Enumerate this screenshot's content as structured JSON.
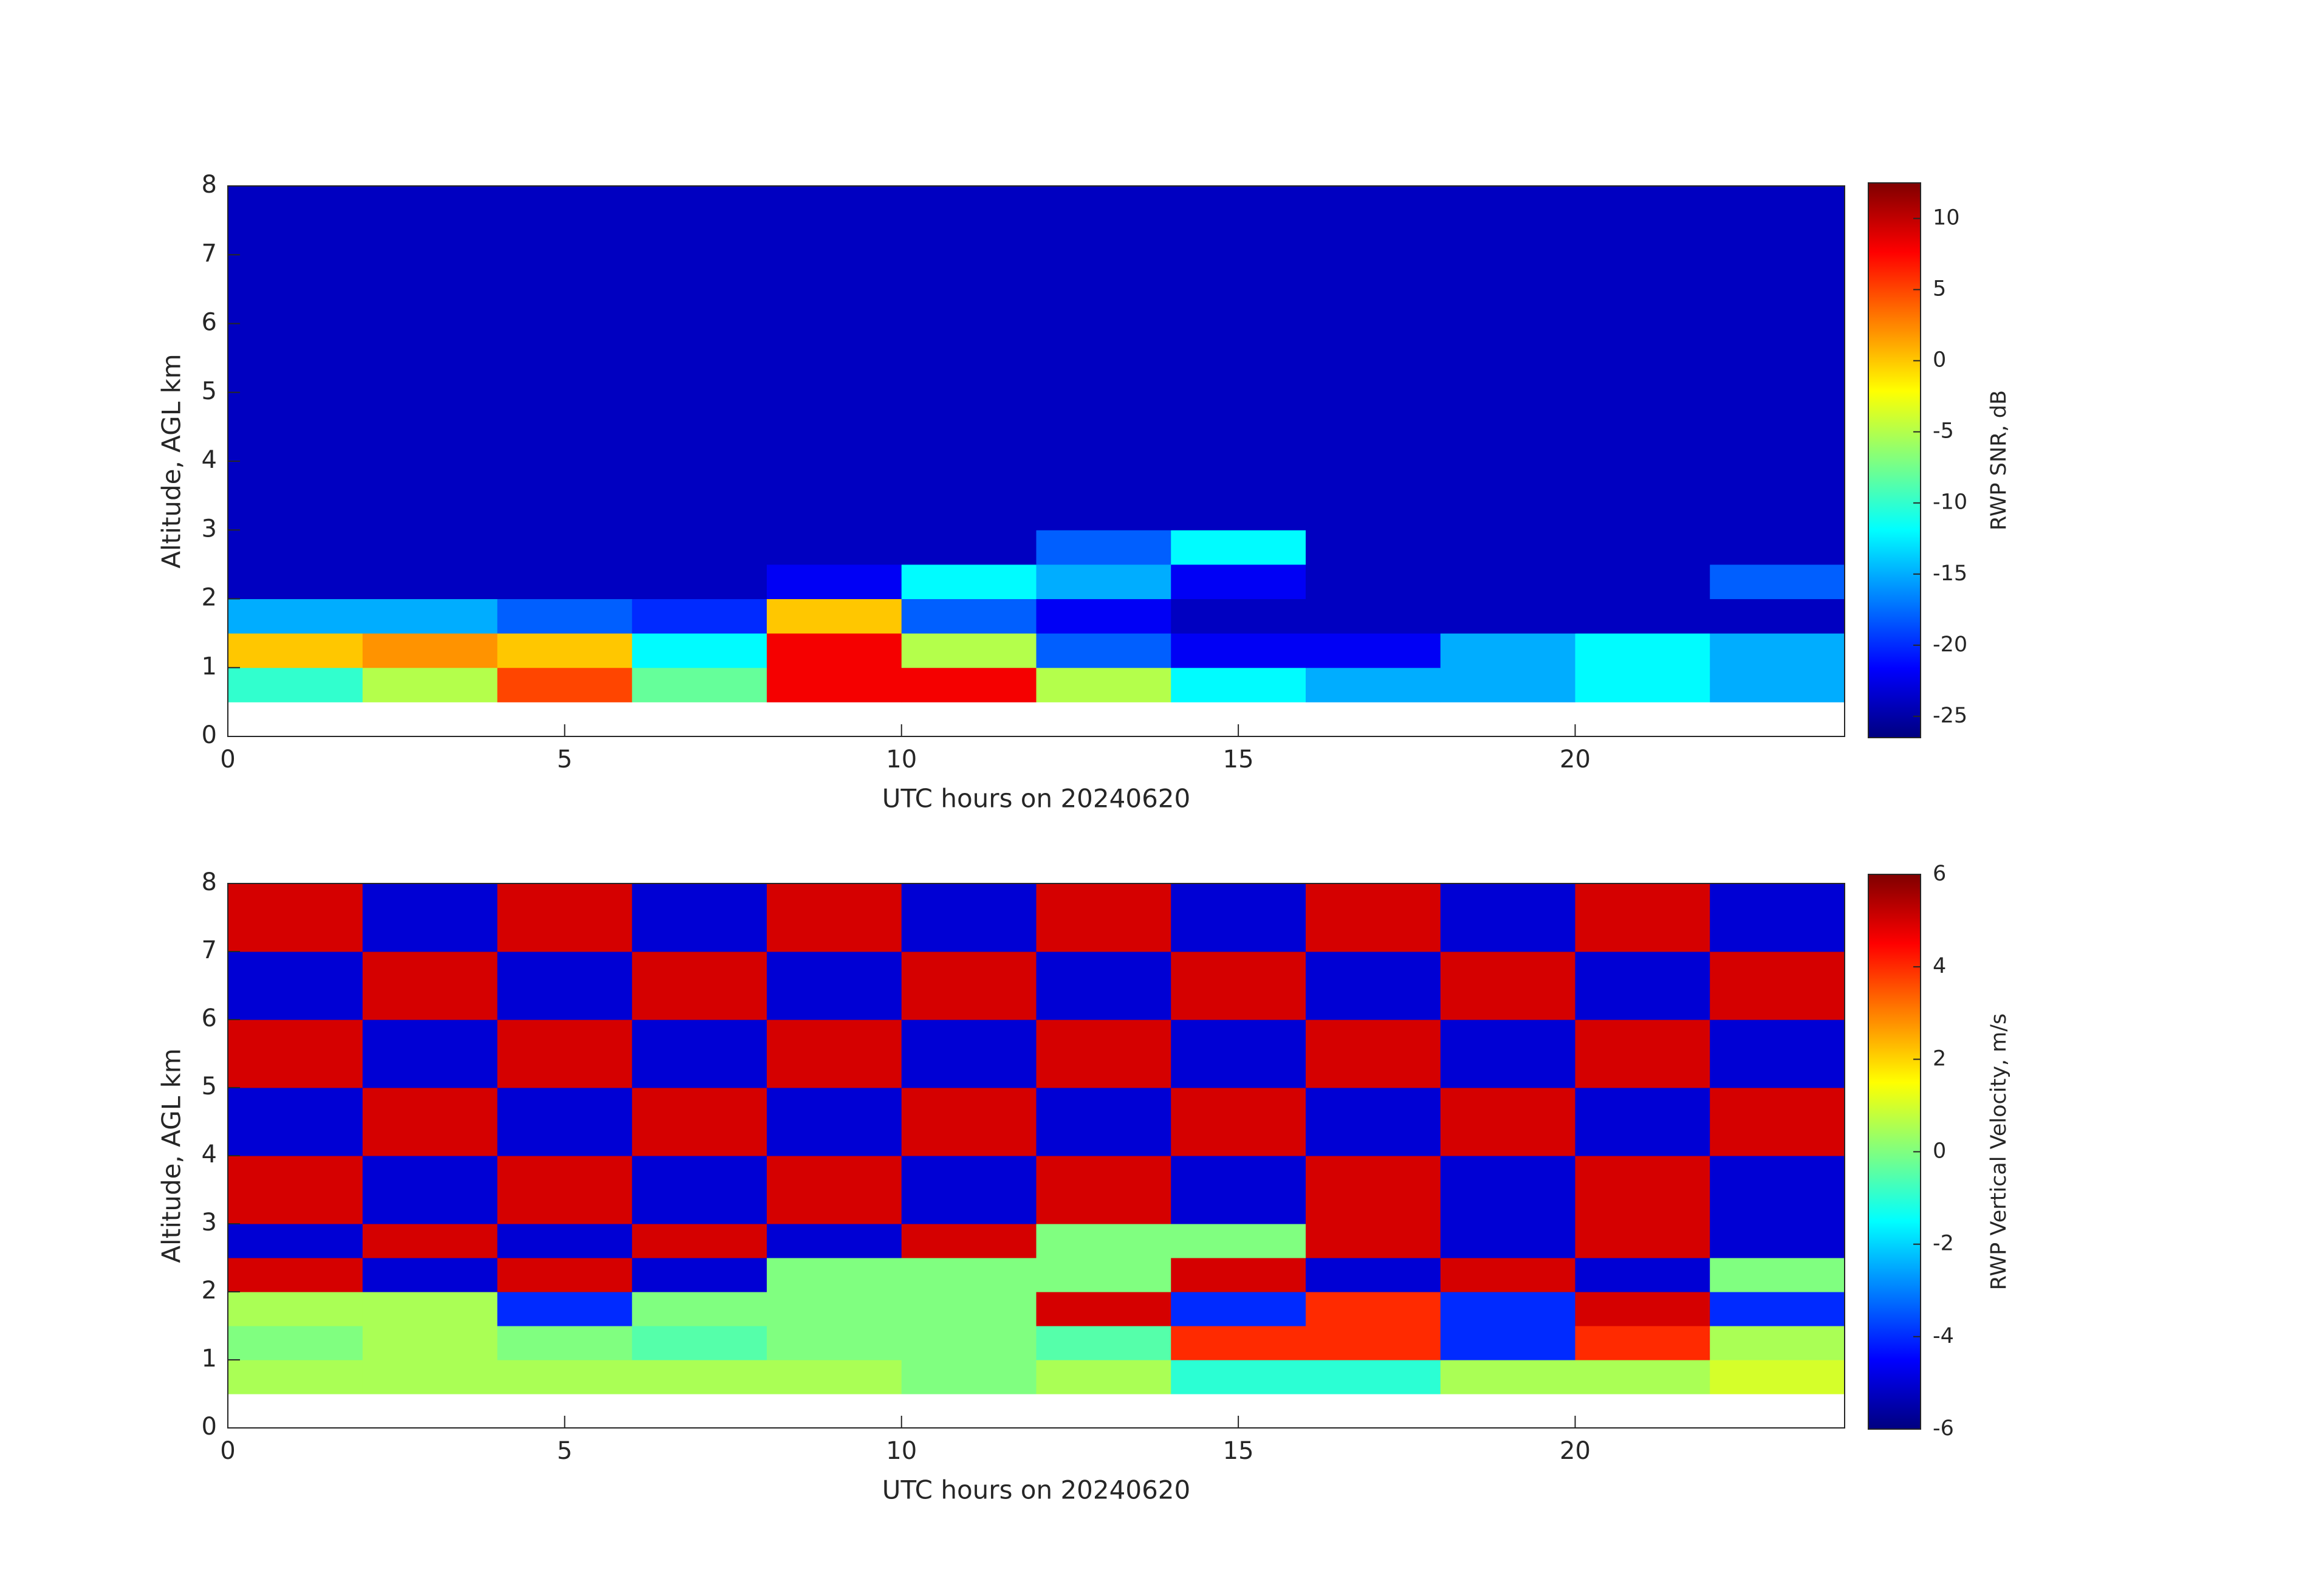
{
  "chart_data": [
    {
      "type": "heatmap",
      "colormap": "jet",
      "xlabel": "UTC hours on 20240620",
      "ylabel": "Altitude, AGL km",
      "colorbar_label": "RWP SNR, dB",
      "xlim": [
        0,
        24
      ],
      "xticks": [
        0,
        5,
        10,
        15,
        20
      ],
      "ylim": [
        0,
        8
      ],
      "yticks": [
        0,
        1,
        2,
        3,
        4,
        5,
        6,
        7,
        8
      ],
      "clim": [
        -26.5,
        12.5
      ],
      "cticks": [
        -25,
        -20,
        -15,
        -10,
        -5,
        0,
        5,
        10
      ],
      "xbins": [
        0,
        2,
        4,
        6,
        8,
        10,
        12,
        14,
        16,
        18,
        20,
        22,
        24
      ],
      "ybins": [
        0.5,
        1,
        1.5,
        2,
        2.5,
        3,
        4,
        5,
        6,
        7,
        8
      ],
      "values": [
        [
          -10,
          -5,
          5,
          -8,
          8,
          8,
          -5,
          -12,
          -15,
          -15,
          -12,
          -15
        ],
        [
          0,
          2,
          0,
          -12,
          8,
          -5,
          -18,
          -22,
          -22,
          -15,
          -12,
          -15
        ],
        [
          -15,
          -15,
          -18,
          -20,
          0,
          -18,
          -22,
          -24,
          -24,
          -24,
          -24,
          -24
        ],
        [
          -24,
          -24,
          -24,
          -24,
          -22,
          -12,
          -15,
          -22,
          -24,
          -24,
          -24,
          -18
        ],
        [
          -24,
          -24,
          -24,
          -24,
          -24,
          -24,
          -18,
          -12,
          -24,
          -24,
          -24,
          -24
        ],
        [
          -24,
          -24,
          -24,
          -24,
          -24,
          -24,
          -24,
          -24,
          -24,
          -24,
          -24,
          -24
        ],
        [
          -24,
          -24,
          -24,
          -24,
          -24,
          -24,
          -24,
          -24,
          -24,
          -24,
          -24,
          -24
        ],
        [
          -24,
          -24,
          -24,
          -24,
          -24,
          -24,
          -24,
          -24,
          -24,
          -24,
          -24,
          -24
        ],
        [
          -24,
          -24,
          -24,
          -24,
          -24,
          -24,
          -24,
          -24,
          -24,
          -24,
          -24,
          -24
        ],
        [
          -24,
          -24,
          -24,
          -24,
          -24,
          -24,
          -24,
          -24,
          -24,
          -24,
          -24,
          -24
        ]
      ]
    },
    {
      "type": "heatmap",
      "colormap": "jet",
      "xlabel": "UTC hours on 20240620",
      "ylabel": "Altitude, AGL km",
      "colorbar_label": "RWP Vertical Velocity, m/s",
      "xlim": [
        0,
        24
      ],
      "xticks": [
        0,
        5,
        10,
        15,
        20
      ],
      "ylim": [
        0,
        8
      ],
      "yticks": [
        0,
        1,
        2,
        3,
        4,
        5,
        6,
        7,
        8
      ],
      "clim": [
        -6,
        6
      ],
      "cticks": [
        -6,
        -4,
        -2,
        0,
        2,
        4,
        6
      ],
      "xbins": [
        0,
        2,
        4,
        6,
        8,
        10,
        12,
        14,
        16,
        18,
        20,
        22,
        24
      ],
      "ybins": [
        0.5,
        1,
        1.5,
        2,
        2.5,
        3,
        4,
        5,
        6,
        7,
        8
      ],
      "values": [
        [
          0.5,
          0.5,
          0.5,
          0.5,
          0.5,
          0,
          0.5,
          -1,
          -1,
          0.5,
          0.5,
          1
        ],
        [
          0,
          0.5,
          0,
          -0.5,
          0,
          0,
          -0.5,
          4,
          4,
          -4,
          4,
          0.5
        ],
        [
          0.5,
          0.5,
          -4,
          0,
          0,
          0,
          5,
          -4,
          4,
          -4,
          5,
          -4
        ],
        [
          5,
          -5,
          5,
          -5,
          0,
          0,
          0,
          5,
          -5,
          5,
          -5,
          0
        ],
        [
          -5,
          5,
          -5,
          5,
          -5,
          5,
          0,
          0,
          5,
          -5,
          5,
          -5
        ],
        [
          5,
          -5,
          5,
          -5,
          5,
          -5,
          5,
          -5,
          5,
          -5,
          5,
          -5
        ],
        [
          -5,
          5,
          -5,
          5,
          -5,
          5,
          -5,
          5,
          -5,
          5,
          -5,
          5
        ],
        [
          5,
          -5,
          5,
          -5,
          5,
          -5,
          5,
          -5,
          5,
          -5,
          5,
          -5
        ],
        [
          -5,
          5,
          -5,
          5,
          -5,
          5,
          -5,
          5,
          -5,
          5,
          -5,
          5
        ],
        [
          5,
          -5,
          5,
          -5,
          5,
          -5,
          5,
          -5,
          5,
          -5,
          5,
          -5
        ]
      ]
    }
  ]
}
